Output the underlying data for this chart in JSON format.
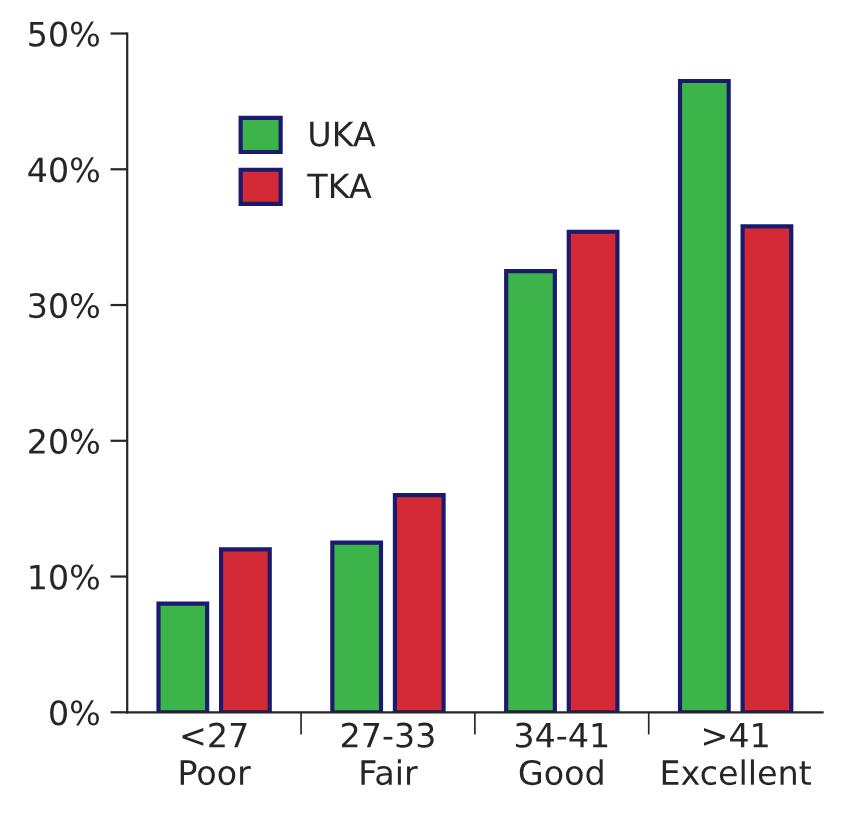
{
  "chart_data": {
    "type": "bar",
    "categories": [
      "<27\nPoor",
      "27-33\nFair",
      "34-41\nGood",
      ">41\nExcellent"
    ],
    "series": [
      {
        "name": "UKA",
        "color": "#3cb44a",
        "values": [
          8,
          12.5,
          32.5,
          46.5
        ]
      },
      {
        "name": "TKA",
        "color": "#d42a36",
        "values": [
          12,
          16,
          35.4,
          35.8
        ]
      }
    ],
    "ylim": [
      0,
      50
    ],
    "yticks": [
      {
        "value": 0,
        "label": "0%"
      },
      {
        "value": 10,
        "label": "10%"
      },
      {
        "value": 20,
        "label": "20%"
      },
      {
        "value": 30,
        "label": "30%"
      },
      {
        "value": 40,
        "label": "40%"
      },
      {
        "value": 50,
        "label": "50%"
      }
    ],
    "grid": false,
    "legend": "top left"
  }
}
